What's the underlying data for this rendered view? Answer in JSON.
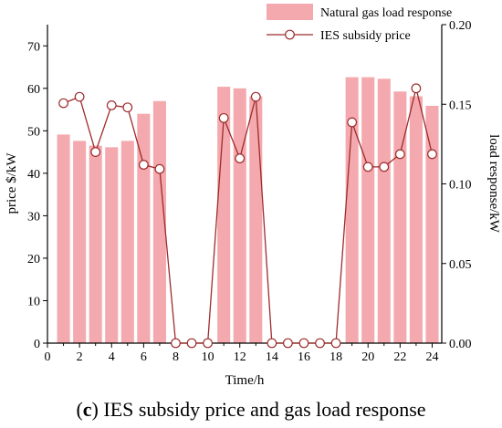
{
  "chart_data": {
    "type": "bar+line",
    "xlabel": "Time/h",
    "ylabel_left": "price $/kW",
    "ylabel_right": "load response/kW",
    "caption_tag": "c",
    "caption_text": "IES subsidy price and gas load response",
    "x_ticks": [
      "0",
      "2",
      "4",
      "6",
      "8",
      "10",
      "12",
      "14",
      "16",
      "18",
      "20",
      "22",
      "24"
    ],
    "y_left_ticks": [
      "0",
      "10",
      "20",
      "30",
      "40",
      "50",
      "60",
      "70"
    ],
    "y_right_ticks": [
      "0.00",
      "0.05",
      "0.10",
      "0.15",
      "0.20"
    ],
    "xlim": [
      0,
      24.6
    ],
    "ylim_left": [
      0,
      75
    ],
    "ylim_right": [
      0,
      0.2
    ],
    "bar_series": {
      "name": "Natural gas load response",
      "color": "#f4a9ae",
      "x": [
        1,
        2,
        3,
        4,
        5,
        6,
        7,
        11,
        12,
        13,
        19,
        20,
        21,
        22,
        23,
        24
      ],
      "values": [
        0.131,
        0.127,
        0.124,
        0.123,
        0.127,
        0.144,
        0.152,
        0.161,
        0.16,
        0.155,
        0.167,
        0.167,
        0.166,
        0.158,
        0.155,
        0.149
      ]
    },
    "line_series": {
      "name": "IES subsidy price",
      "color": "#9e2b2b",
      "x": [
        1,
        2,
        3,
        4,
        5,
        6,
        7,
        8,
        9,
        10,
        11,
        12,
        13,
        14,
        15,
        16,
        17,
        18,
        19,
        20,
        21,
        22,
        23,
        24
      ],
      "values": [
        56.5,
        58,
        45,
        56,
        55.5,
        42,
        41,
        0,
        0,
        0,
        53,
        43.5,
        58,
        0,
        0,
        0,
        0,
        0,
        52,
        41.5,
        41.5,
        44.5,
        60,
        44.5
      ]
    }
  }
}
